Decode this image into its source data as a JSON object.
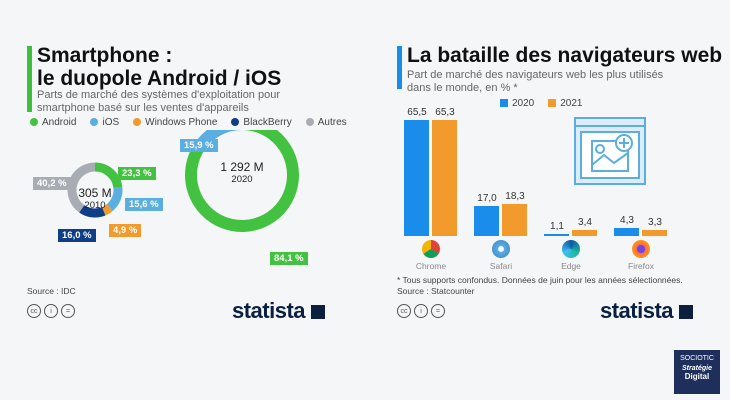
{
  "left": {
    "title_line1": "Smartphone :",
    "title_line2": "le duopole Android / iOS",
    "subtitle_line1": "Parts de marché des systèmes d'exploitation pour",
    "subtitle_line2": "smartphone basé sur les ventes d'appareils",
    "source": "Source : IDC",
    "accent": "#3fbf3f"
  },
  "right": {
    "title": "La bataille des navigateurs web",
    "subtitle_line1": "Part de marché des navigateurs web les plus utilisés",
    "subtitle_line2": "dans le monde, en % *",
    "footnote": "* Tous supports confondus. Données de juin pour les années sélectionnées.",
    "source": "Source : Statcounter",
    "accent": "#1a8cea"
  },
  "brand": "statista",
  "watermark": {
    "line1": "SOCIOTIC",
    "line2": "Stratégie",
    "line3": "Digital"
  },
  "chart_data": [
    {
      "type": "pie",
      "title": "Smartphone : le duopole Android / iOS",
      "legend": [
        {
          "name": "Android",
          "color": "#43c241"
        },
        {
          "name": "iOS",
          "color": "#5aaee0"
        },
        {
          "name": "Windows Phone",
          "color": "#f39a2c"
        },
        {
          "name": "BlackBerry",
          "color": "#0f3e87"
        },
        {
          "name": "Autres",
          "color": "#a8adb4"
        }
      ],
      "donuts": [
        {
          "total_label": "305 M",
          "year": "2010",
          "slices": [
            {
              "name": "Android",
              "value": 23.3,
              "label": "23,3 %"
            },
            {
              "name": "iOS",
              "value": 15.6,
              "label": "15,6 %"
            },
            {
              "name": "Windows Phone",
              "value": 4.9,
              "label": "4,9 %"
            },
            {
              "name": "BlackBerry",
              "value": 16.0,
              "label": "16,0 %"
            },
            {
              "name": "Autres",
              "value": 40.2,
              "label": "40,2 %"
            }
          ]
        },
        {
          "total_label": "1 292 M",
          "year": "2020",
          "slices": [
            {
              "name": "Android",
              "value": 84.1,
              "label": "84,1 %"
            },
            {
              "name": "iOS",
              "value": 15.9,
              "label": "15,9 %"
            }
          ]
        }
      ]
    },
    {
      "type": "bar",
      "title": "La bataille des navigateurs web",
      "ylabel": "%",
      "ylim": [
        0,
        70
      ],
      "categories": [
        "Chrome",
        "Safari",
        "Edge",
        "Firefox"
      ],
      "series": [
        {
          "name": "2020",
          "color": "#1a8cea",
          "values": [
            65.5,
            17.0,
            1.1,
            4.3
          ],
          "labels": [
            "65,5",
            "17,0",
            "1,1",
            "4,3"
          ]
        },
        {
          "name": "2021",
          "color": "#f39a2c",
          "values": [
            65.3,
            18.3,
            3.4,
            3.3
          ],
          "labels": [
            "65,3",
            "18,3",
            "3,4",
            "3,3"
          ]
        }
      ]
    }
  ]
}
